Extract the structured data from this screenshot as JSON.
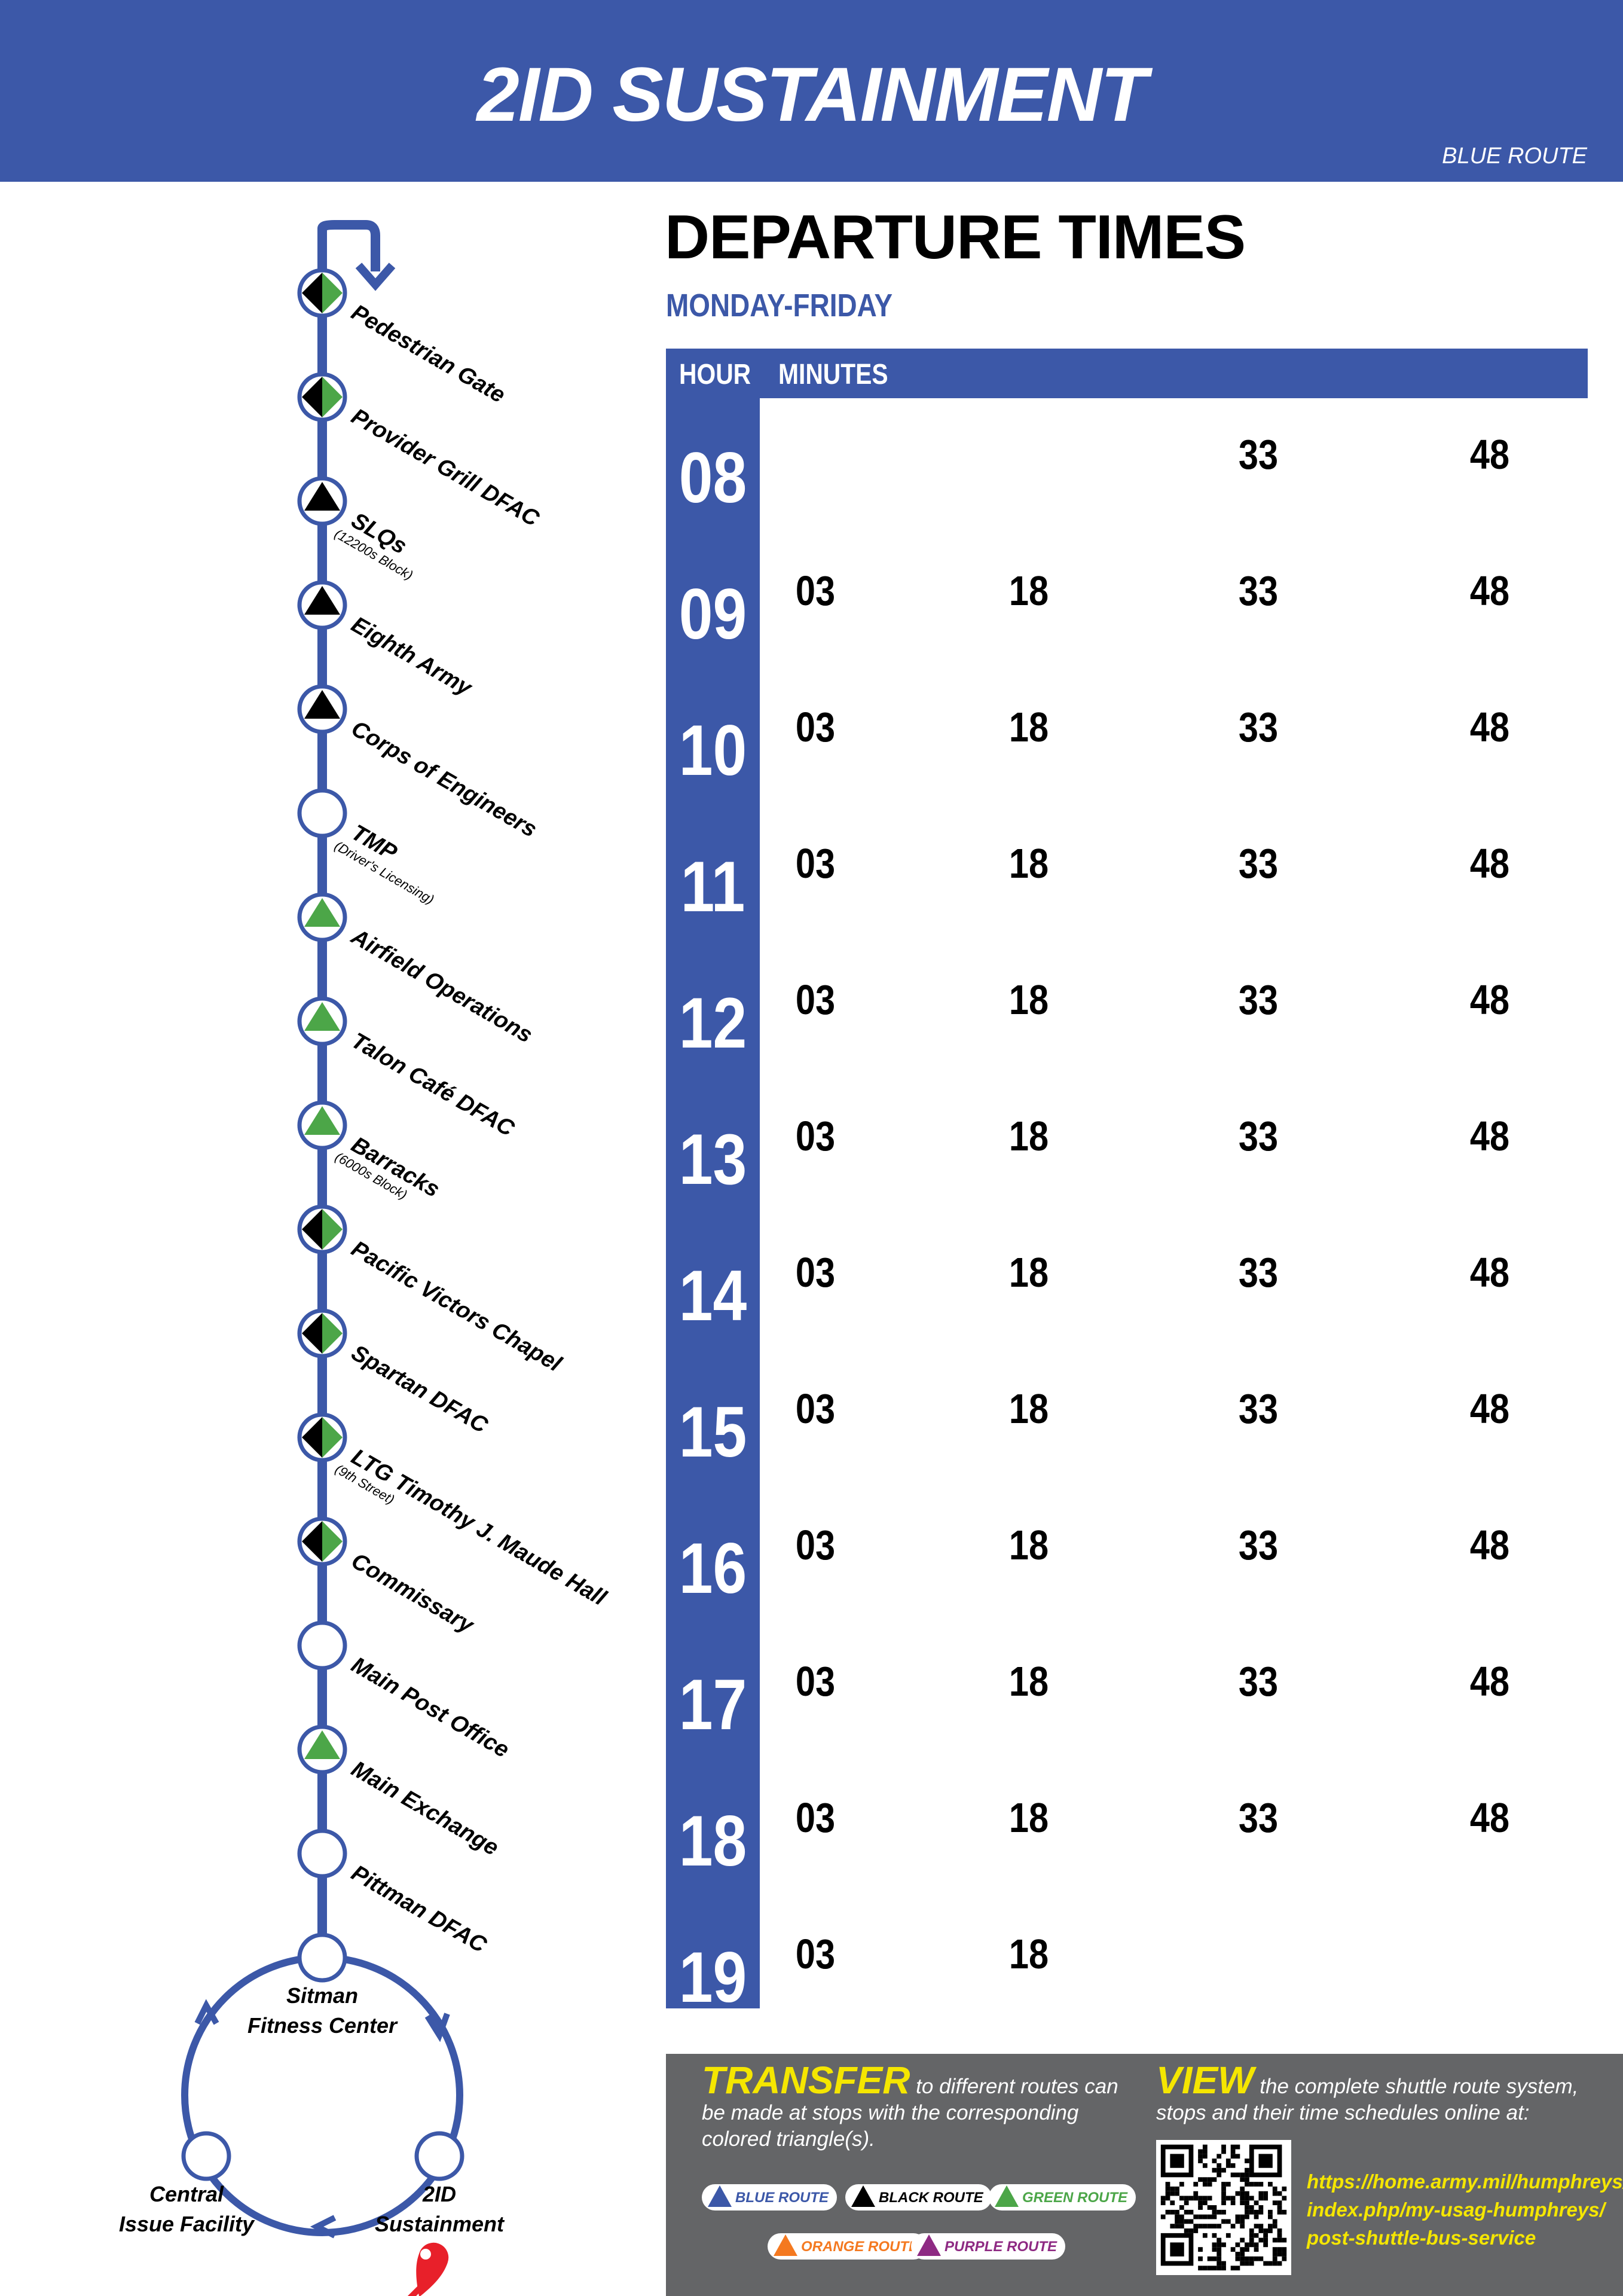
{
  "header": {
    "title": "2ID SUSTAINMENT",
    "route": "BLUE ROUTE"
  },
  "colors": {
    "blue": "#3c58a8",
    "green": "#4ca648",
    "black": "#000000",
    "gray": "#646567",
    "yellow": "#f5e600",
    "orange": "#f47920",
    "purple": "#8e2a83",
    "red": "#e8202a"
  },
  "stops": [
    {
      "name": "Pedestrian Gate",
      "sub": "",
      "transfer": "black-green"
    },
    {
      "name": "Provider Grill DFAC",
      "sub": "",
      "transfer": "black-green"
    },
    {
      "name": "SLQs",
      "sub": "(12200s Block)",
      "transfer": "black"
    },
    {
      "name": "Eighth Army",
      "sub": "",
      "transfer": "black"
    },
    {
      "name": "Corps of Engineers",
      "sub": "",
      "transfer": "black"
    },
    {
      "name": "TMP",
      "sub": "(Driver's Licensing)",
      "transfer": "none"
    },
    {
      "name": "Airfield Operations",
      "sub": "",
      "transfer": "green"
    },
    {
      "name": "Talon Café DFAC",
      "sub": "",
      "transfer": "green"
    },
    {
      "name": "Barracks",
      "sub": "(6000s Block)",
      "transfer": "green"
    },
    {
      "name": "Pacific Victors Chapel",
      "sub": "",
      "transfer": "black-green"
    },
    {
      "name": "Spartan DFAC",
      "sub": "",
      "transfer": "black-green"
    },
    {
      "name": "LTG Timothy J. Maude Hall",
      "sub": "(9th Street)",
      "transfer": "black-green"
    },
    {
      "name": "Commissary",
      "sub": "",
      "transfer": "black-green"
    },
    {
      "name": "Main Post Office",
      "sub": "",
      "transfer": "none"
    },
    {
      "name": "Main Exchange",
      "sub": "",
      "transfer": "green"
    },
    {
      "name": "Pittman DFAC",
      "sub": "",
      "transfer": "none"
    }
  ],
  "loop": {
    "top": [
      "Sitman",
      "Fitness Center"
    ],
    "left": [
      "Central",
      "Issue Facility"
    ],
    "right": [
      "2ID",
      "Sustainment"
    ]
  },
  "schedule": {
    "title": "DEPARTURE TIMES",
    "days": "MONDAY-FRIDAY",
    "col_hour": "HOUR",
    "col_minutes": "MINUTES",
    "rows": [
      {
        "hour": "08",
        "minutes": [
          "",
          "",
          "33",
          "48"
        ]
      },
      {
        "hour": "09",
        "minutes": [
          "03",
          "18",
          "33",
          "48"
        ]
      },
      {
        "hour": "10",
        "minutes": [
          "03",
          "18",
          "33",
          "48"
        ]
      },
      {
        "hour": "11",
        "minutes": [
          "03",
          "18",
          "33",
          "48"
        ]
      },
      {
        "hour": "12",
        "minutes": [
          "03",
          "18",
          "33",
          "48"
        ]
      },
      {
        "hour": "13",
        "minutes": [
          "03",
          "18",
          "33",
          "48"
        ]
      },
      {
        "hour": "14",
        "minutes": [
          "03",
          "18",
          "33",
          "48"
        ]
      },
      {
        "hour": "15",
        "minutes": [
          "03",
          "18",
          "33",
          "48"
        ]
      },
      {
        "hour": "16",
        "minutes": [
          "03",
          "18",
          "33",
          "48"
        ]
      },
      {
        "hour": "17",
        "minutes": [
          "03",
          "18",
          "33",
          "48"
        ]
      },
      {
        "hour": "18",
        "minutes": [
          "03",
          "18",
          "33",
          "48"
        ]
      },
      {
        "hour": "19",
        "minutes": [
          "03",
          "18",
          "",
          ""
        ]
      }
    ]
  },
  "footer": {
    "transfer_word": "TRANSFER",
    "transfer_text1": " to different routes can",
    "transfer_text2": "be made at stops with the corresponding",
    "transfer_text3": "colored triangle(s).",
    "view_word": "VIEW",
    "view_text1": " the complete shuttle route system,",
    "view_text2": "stops and their time schedules online at:",
    "routes": [
      {
        "label": "BLUE ROUTE",
        "color": "#3c58a8"
      },
      {
        "label": "BLACK ROUTE",
        "color": "#000000"
      },
      {
        "label": "GREEN ROUTE",
        "color": "#4ca648"
      },
      {
        "label": "ORANGE ROUTE",
        "color": "#f47920"
      },
      {
        "label": "PURPLE ROUTE",
        "color": "#8e2a83"
      }
    ],
    "url_lines": [
      "https://home.army.mil/humphreys/",
      "index.php/my-usag-humphreys/",
      "post-shuttle-bus-service"
    ]
  }
}
